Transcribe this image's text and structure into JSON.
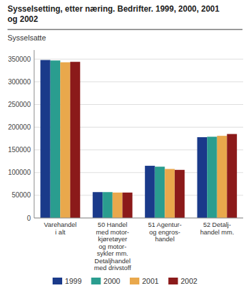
{
  "chart_data": {
    "type": "bar",
    "title": "Sysselsetting, etter næring. Bedrifter. 1999, 2000, 2001\nog 2002",
    "y_label": "Sysselsatte",
    "categories": [
      "Varehandel\ni alt",
      "50 Handel\nmed motor-\nkjøretøyer\nog motor-\nsykler mm.\nDetaljhandel\nmed drivstoff",
      "51 Agentur-\nog engros-\nhandel",
      "52 Detalj-\nhandel mm."
    ],
    "series": [
      {
        "name": "1999",
        "color": "#1a3a8a",
        "values": [
          348000,
          57000,
          115000,
          178000
        ]
      },
      {
        "name": "2000",
        "color": "#2a9d8f",
        "values": [
          347000,
          57000,
          113000,
          179000
        ]
      },
      {
        "name": "2001",
        "color": "#e9a84c",
        "values": [
          343000,
          56000,
          108000,
          181000
        ]
      },
      {
        "name": "2002",
        "color": "#8b1a1a",
        "values": [
          344000,
          56000,
          106000,
          185000
        ]
      }
    ],
    "ylim": [
      0,
      370000
    ],
    "yticks": [
      0,
      50000,
      100000,
      150000,
      200000,
      250000,
      300000,
      350000
    ],
    "grid": true,
    "legend": "bottom"
  }
}
